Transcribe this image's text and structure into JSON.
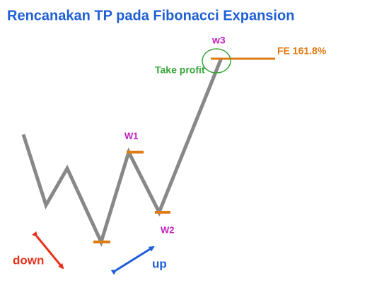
{
  "title": "Rencanakan TP pada Fibonacci Expansion",
  "labels": {
    "w1": "W1",
    "w2": "W2",
    "w3": "w3",
    "take_profit": "Take profit",
    "fe": "FE 161.8%",
    "down": "down",
    "up": "up"
  }
}
